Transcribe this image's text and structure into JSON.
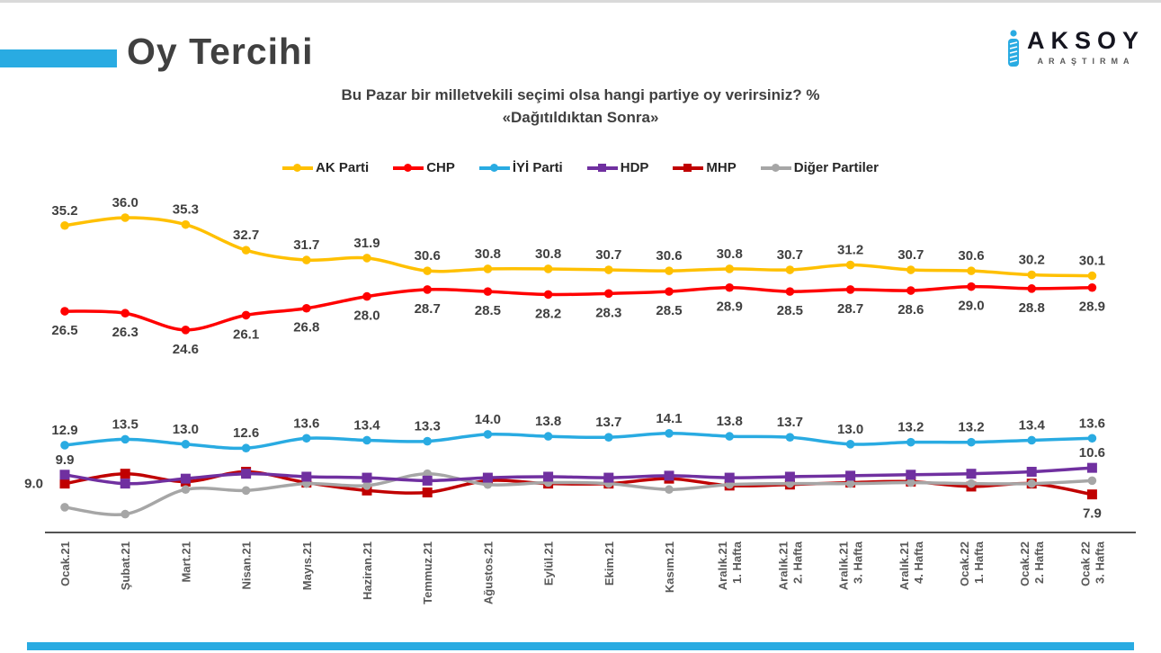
{
  "header": {
    "title": "Oy Tercihi"
  },
  "logo": {
    "brand": "AKSOY",
    "sub": "ARAŞTIRMA",
    "accent_color": "#29ABE2"
  },
  "subtitle": {
    "line1": "Bu Pazar bir milletvekili seçimi olsa hangi partiye oy verirsiniz? %",
    "line2": "«Dağıtıldıktan Sonra»"
  },
  "colors": {
    "accent_blue": "#29ABE2",
    "title_text": "#404040",
    "value_label_text": "#404040",
    "tick_label_text": "#595959",
    "axis_line": "#1a1a1a"
  },
  "chart_data": {
    "type": "line",
    "title": "Bu Pazar bir milletvekili seçimi olsa hangi partiye oy verirsiniz? % «Dağıtıldıktan Sonra»",
    "legend_position": "top",
    "grid": false,
    "ylim": [
      5,
      37
    ],
    "x_labels": [
      [
        "Ocak.21"
      ],
      [
        "Şubat.21"
      ],
      [
        "Mart.21"
      ],
      [
        "Nisan.21"
      ],
      [
        "Mayıs.21"
      ],
      [
        "Haziran.21"
      ],
      [
        "Temmuz.21"
      ],
      [
        "Ağustos.21"
      ],
      [
        "Eylül.21"
      ],
      [
        "Ekim.21"
      ],
      [
        "Kasım.21"
      ],
      [
        "Aralık.21",
        "1. Hafta"
      ],
      [
        "Aralık.21",
        "2. Hafta"
      ],
      [
        "Aralık.21",
        "3. Hafta"
      ],
      [
        "Aralık.21",
        "4. Hafta"
      ],
      [
        "Ocak.22",
        "1. Hafta"
      ],
      [
        "Ocak.22",
        "2. Hafta"
      ],
      [
        "Ocak 22",
        "3. Hafta"
      ]
    ],
    "series": [
      {
        "name": "AK Parti",
        "color": "#FFC000",
        "marker": "circle",
        "values": [
          35.2,
          36.0,
          35.3,
          32.7,
          31.7,
          31.9,
          30.6,
          30.8,
          30.8,
          30.7,
          30.6,
          30.8,
          30.7,
          31.2,
          30.7,
          30.6,
          30.2,
          30.1
        ],
        "value_labels": "all",
        "label_pos": "above"
      },
      {
        "name": "CHP",
        "color": "#FF0000",
        "marker": "circle",
        "values": [
          26.5,
          26.3,
          24.6,
          26.1,
          26.8,
          28.0,
          28.7,
          28.5,
          28.2,
          28.3,
          28.5,
          28.9,
          28.5,
          28.7,
          28.6,
          29.0,
          28.8,
          28.9
        ],
        "value_labels": "all",
        "label_pos": "below"
      },
      {
        "name": "İYİ Parti",
        "color": "#29ABE2",
        "marker": "circle",
        "values": [
          12.9,
          13.5,
          13.0,
          12.6,
          13.6,
          13.4,
          13.3,
          14.0,
          13.8,
          13.7,
          14.1,
          13.8,
          13.7,
          13.0,
          13.2,
          13.2,
          13.4,
          13.6
        ],
        "value_labels": "all",
        "label_pos": "above"
      },
      {
        "name": "HDP",
        "color": "#7030A0",
        "marker": "square",
        "values": [
          9.9,
          9.0,
          9.5,
          10.0,
          9.7,
          9.6,
          9.3,
          9.6,
          9.7,
          9.6,
          9.8,
          9.6,
          9.7,
          9.8,
          9.9,
          10.0,
          10.2,
          10.6
        ],
        "value_labels": "first_last",
        "first_label_pos": "above",
        "last_label_pos": "above"
      },
      {
        "name": "MHP",
        "color": "#C00000",
        "marker": "square",
        "values": [
          9.0,
          10.0,
          9.2,
          10.2,
          9.1,
          8.3,
          8.1,
          9.3,
          9.0,
          9.0,
          9.5,
          8.8,
          8.9,
          9.1,
          9.2,
          8.7,
          9.0,
          7.9
        ],
        "value_labels": "first_last",
        "first_label_pos": "left",
        "last_label_pos": "below"
      },
      {
        "name": "Diğer Partiler",
        "color": "#A6A6A6",
        "marker": "circle",
        "values": [
          6.6,
          5.9,
          8.4,
          8.3,
          9.0,
          8.8,
          10.0,
          8.9,
          9.1,
          9.0,
          8.4,
          8.9,
          9.0,
          9.0,
          9.1,
          9.0,
          9.0,
          9.3
        ],
        "value_labels": "none"
      }
    ]
  }
}
